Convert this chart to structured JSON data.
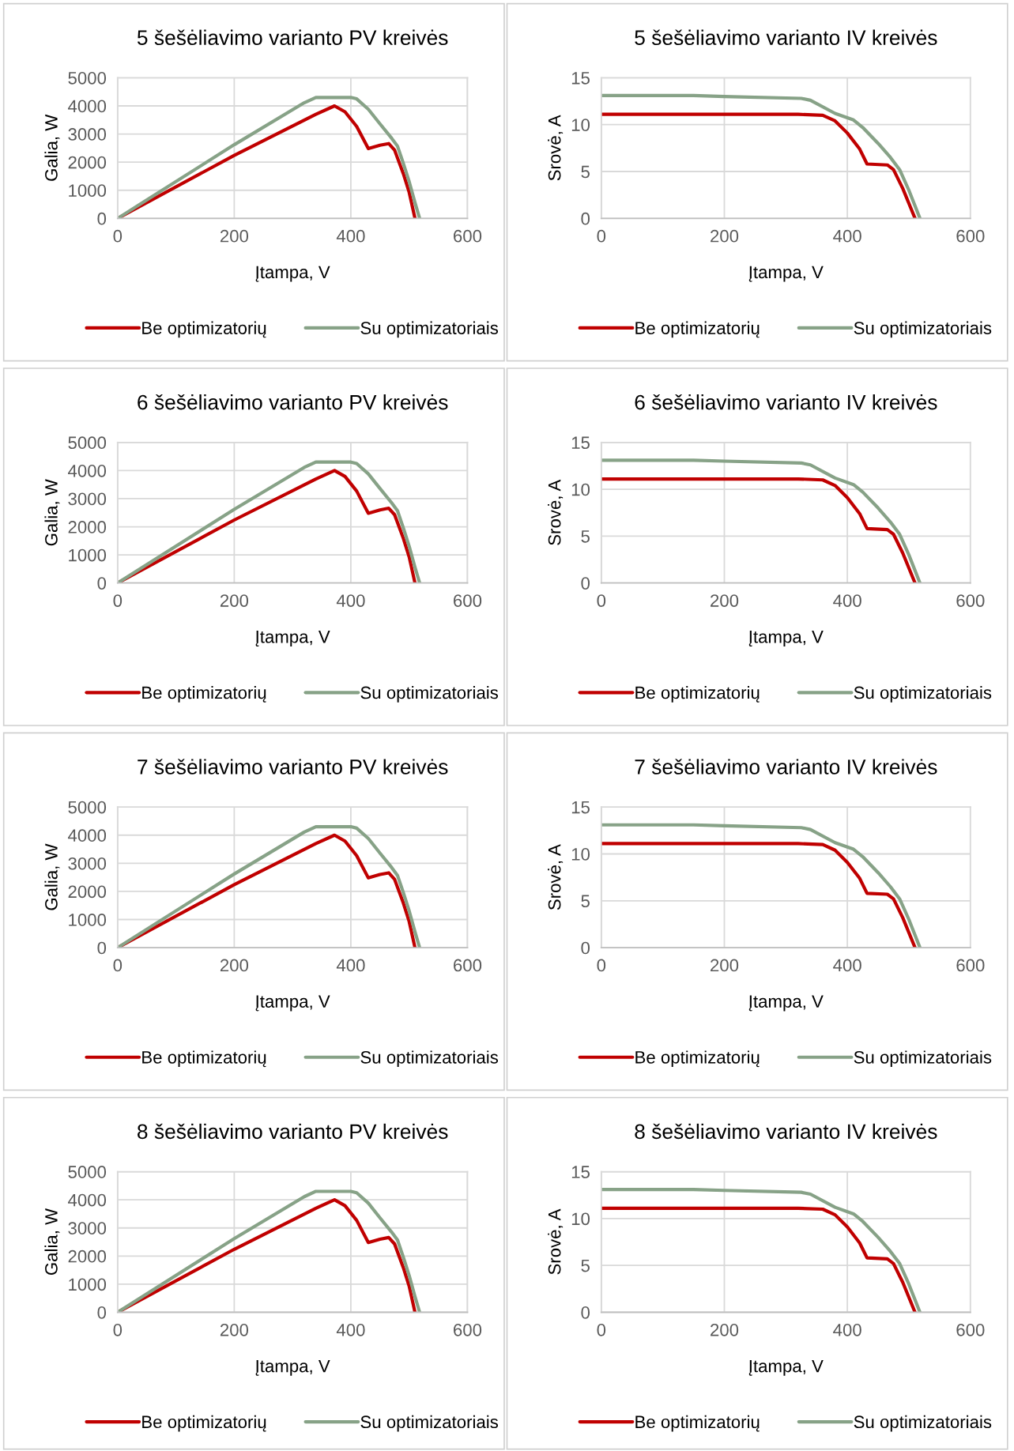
{
  "chart_data": [
    {
      "type": "line",
      "title": "5 šešėliavimo varianto PV kreivės",
      "xlabel": "Įtampa, V",
      "ylabel": "Galia, W",
      "xlim": [
        0,
        600
      ],
      "xticks": [
        0,
        200,
        400,
        600
      ],
      "ylim": [
        0,
        5000
      ],
      "yticks": [
        0,
        1000,
        2000,
        3000,
        4000,
        5000
      ],
      "grid": true,
      "legend": "bottom",
      "marker": "none",
      "line_style": "solid",
      "series": [
        {
          "name": "Be optimizatorių",
          "color": "#c00000",
          "x": [
            0,
            200,
            340,
            372,
            390,
            410,
            430,
            450,
            465,
            475,
            490,
            500,
            510
          ],
          "values": [
            0,
            2240,
            3700,
            4000,
            3790,
            3270,
            2480,
            2600,
            2660,
            2430,
            1590,
            930,
            0
          ]
        },
        {
          "name": "Su optimizatoriais",
          "color": "#87a287",
          "x": [
            0,
            200,
            320,
            340,
            400,
            410,
            430,
            450,
            470,
            480,
            490,
            500,
            510,
            518
          ],
          "values": [
            0,
            2620,
            4110,
            4300,
            4300,
            4250,
            3880,
            3360,
            2850,
            2570,
            1960,
            1310,
            560,
            0
          ]
        }
      ]
    },
    {
      "type": "line",
      "title": "5 šešėliavimo varianto IV kreivės",
      "xlabel": "Įtampa, V",
      "ylabel": "Srovė, A",
      "xlim": [
        0,
        600
      ],
      "xticks": [
        0,
        200,
        400,
        600
      ],
      "ylim": [
        0,
        15
      ],
      "yticks": [
        0,
        5,
        10,
        15
      ],
      "grid": true,
      "legend": "bottom",
      "marker": "none",
      "line_style": "solid",
      "series": [
        {
          "name": "Be optimizatorių",
          "color": "#c00000",
          "x": [
            0,
            320,
            360,
            380,
            400,
            420,
            432,
            465,
            475,
            490,
            510
          ],
          "values": [
            11.1,
            11.1,
            11.0,
            10.4,
            9.1,
            7.4,
            5.8,
            5.7,
            5.2,
            3.2,
            0
          ]
        },
        {
          "name": "Su optimizatoriais",
          "color": "#87a287",
          "x": [
            0,
            150,
            200,
            325,
            340,
            380,
            410,
            425,
            450,
            470,
            485,
            500,
            518
          ],
          "values": [
            13.1,
            13.1,
            13.0,
            12.8,
            12.6,
            11.2,
            10.5,
            9.7,
            8.0,
            6.5,
            5.2,
            3.0,
            0
          ]
        }
      ]
    },
    {
      "type": "line",
      "title": "6 šešėliavimo varianto PV kreivės",
      "xlabel": "Įtampa, V",
      "ylabel": "Galia, W",
      "xlim": [
        0,
        600
      ],
      "xticks": [
        0,
        200,
        400,
        600
      ],
      "ylim": [
        0,
        5000
      ],
      "yticks": [
        0,
        1000,
        2000,
        3000,
        4000,
        5000
      ],
      "grid": true,
      "legend": "bottom",
      "marker": "none",
      "line_style": "solid",
      "series": [
        {
          "name": "Be optimizatorių",
          "color": "#c00000",
          "x": [
            0,
            200,
            340,
            372,
            390,
            410,
            430,
            450,
            465,
            475,
            490,
            500,
            510
          ],
          "values": [
            0,
            2240,
            3700,
            4000,
            3790,
            3270,
            2480,
            2600,
            2660,
            2430,
            1590,
            930,
            0
          ]
        },
        {
          "name": "Su optimizatoriais",
          "color": "#87a287",
          "x": [
            0,
            200,
            320,
            340,
            400,
            410,
            430,
            450,
            470,
            480,
            490,
            500,
            510,
            518
          ],
          "values": [
            0,
            2620,
            4110,
            4300,
            4300,
            4250,
            3880,
            3360,
            2850,
            2570,
            1960,
            1310,
            560,
            0
          ]
        }
      ]
    },
    {
      "type": "line",
      "title": "6 šešėliavimo varianto IV kreivės",
      "xlabel": "Įtampa, V",
      "ylabel": "Srovė, A",
      "xlim": [
        0,
        600
      ],
      "xticks": [
        0,
        200,
        400,
        600
      ],
      "ylim": [
        0,
        15
      ],
      "yticks": [
        0,
        5,
        10,
        15
      ],
      "grid": true,
      "legend": "bottom",
      "marker": "none",
      "line_style": "solid",
      "series": [
        {
          "name": "Be optimizatorių",
          "color": "#c00000",
          "x": [
            0,
            320,
            360,
            380,
            400,
            420,
            432,
            465,
            475,
            490,
            510
          ],
          "values": [
            11.1,
            11.1,
            11.0,
            10.4,
            9.1,
            7.4,
            5.8,
            5.7,
            5.2,
            3.2,
            0
          ]
        },
        {
          "name": "Su optimizatoriais",
          "color": "#87a287",
          "x": [
            0,
            150,
            200,
            325,
            340,
            380,
            410,
            425,
            450,
            470,
            485,
            500,
            518
          ],
          "values": [
            13.1,
            13.1,
            13.0,
            12.8,
            12.6,
            11.2,
            10.5,
            9.7,
            8.0,
            6.5,
            5.2,
            3.0,
            0
          ]
        }
      ]
    },
    {
      "type": "line",
      "title": "7 šešėliavimo varianto PV kreivės",
      "xlabel": "Įtampa, V",
      "ylabel": "Galia, W",
      "xlim": [
        0,
        600
      ],
      "xticks": [
        0,
        200,
        400,
        600
      ],
      "ylim": [
        0,
        5000
      ],
      "yticks": [
        0,
        1000,
        2000,
        3000,
        4000,
        5000
      ],
      "grid": true,
      "legend": "bottom",
      "marker": "none",
      "line_style": "solid",
      "series": [
        {
          "name": "Be optimizatorių",
          "color": "#c00000",
          "x": [
            0,
            200,
            340,
            372,
            390,
            410,
            430,
            450,
            465,
            475,
            490,
            500,
            510
          ],
          "values": [
            0,
            2240,
            3700,
            4000,
            3790,
            3270,
            2480,
            2600,
            2660,
            2430,
            1590,
            930,
            0
          ]
        },
        {
          "name": "Su optimizatoriais",
          "color": "#87a287",
          "x": [
            0,
            200,
            320,
            340,
            400,
            410,
            430,
            450,
            470,
            480,
            490,
            500,
            510,
            518
          ],
          "values": [
            0,
            2620,
            4110,
            4300,
            4300,
            4250,
            3880,
            3360,
            2850,
            2570,
            1960,
            1310,
            560,
            0
          ]
        }
      ]
    },
    {
      "type": "line",
      "title": "7 šešėliavimo varianto IV kreivės",
      "xlabel": "Įtampa, V",
      "ylabel": "Srovė, A",
      "xlim": [
        0,
        600
      ],
      "xticks": [
        0,
        200,
        400,
        600
      ],
      "ylim": [
        0,
        15
      ],
      "yticks": [
        0,
        5,
        10,
        15
      ],
      "grid": true,
      "legend": "bottom",
      "marker": "none",
      "line_style": "solid",
      "series": [
        {
          "name": "Be optimizatorių",
          "color": "#c00000",
          "x": [
            0,
            320,
            360,
            380,
            400,
            420,
            432,
            465,
            475,
            490,
            510
          ],
          "values": [
            11.1,
            11.1,
            11.0,
            10.4,
            9.1,
            7.4,
            5.8,
            5.7,
            5.2,
            3.2,
            0
          ]
        },
        {
          "name": "Su optimizatoriais",
          "color": "#87a287",
          "x": [
            0,
            150,
            200,
            325,
            340,
            380,
            410,
            425,
            450,
            470,
            485,
            500,
            518
          ],
          "values": [
            13.1,
            13.1,
            13.0,
            12.8,
            12.6,
            11.2,
            10.5,
            9.7,
            8.0,
            6.5,
            5.2,
            3.0,
            0
          ]
        }
      ]
    },
    {
      "type": "line",
      "title": "8 šešėliavimo varianto PV kreivės",
      "xlabel": "Įtampa, V",
      "ylabel": "Galia, W",
      "xlim": [
        0,
        600
      ],
      "xticks": [
        0,
        200,
        400,
        600
      ],
      "ylim": [
        0,
        5000
      ],
      "yticks": [
        0,
        1000,
        2000,
        3000,
        4000,
        5000
      ],
      "grid": true,
      "legend": "bottom",
      "marker": "none",
      "line_style": "solid",
      "series": [
        {
          "name": "Be optimizatorių",
          "color": "#c00000",
          "x": [
            0,
            200,
            340,
            372,
            390,
            410,
            430,
            450,
            465,
            475,
            490,
            500,
            510
          ],
          "values": [
            0,
            2240,
            3700,
            4000,
            3790,
            3270,
            2480,
            2600,
            2660,
            2430,
            1590,
            930,
            0
          ]
        },
        {
          "name": "Su optimizatoriais",
          "color": "#87a287",
          "x": [
            0,
            200,
            320,
            340,
            400,
            410,
            430,
            450,
            470,
            480,
            490,
            500,
            510,
            518
          ],
          "values": [
            0,
            2620,
            4110,
            4300,
            4300,
            4250,
            3880,
            3360,
            2850,
            2570,
            1960,
            1310,
            560,
            0
          ]
        }
      ]
    },
    {
      "type": "line",
      "title": "8 šešėliavimo varianto IV kreivės",
      "xlabel": "Įtampa, V",
      "ylabel": "Srovė, A",
      "xlim": [
        0,
        600
      ],
      "xticks": [
        0,
        200,
        400,
        600
      ],
      "ylim": [
        0,
        15
      ],
      "yticks": [
        0,
        5,
        10,
        15
      ],
      "grid": true,
      "legend": "bottom",
      "marker": "none",
      "line_style": "solid",
      "series": [
        {
          "name": "Be optimizatorių",
          "color": "#c00000",
          "x": [
            0,
            320,
            360,
            380,
            400,
            420,
            432,
            465,
            475,
            490,
            510
          ],
          "values": [
            11.1,
            11.1,
            11.0,
            10.4,
            9.1,
            7.4,
            5.8,
            5.7,
            5.2,
            3.2,
            0
          ]
        },
        {
          "name": "Su optimizatoriais",
          "color": "#87a287",
          "x": [
            0,
            150,
            200,
            325,
            340,
            380,
            410,
            425,
            450,
            470,
            485,
            500,
            518
          ],
          "values": [
            13.1,
            13.1,
            13.0,
            12.8,
            12.6,
            11.2,
            10.5,
            9.7,
            8.0,
            6.5,
            5.2,
            3.0,
            0
          ]
        }
      ]
    }
  ]
}
